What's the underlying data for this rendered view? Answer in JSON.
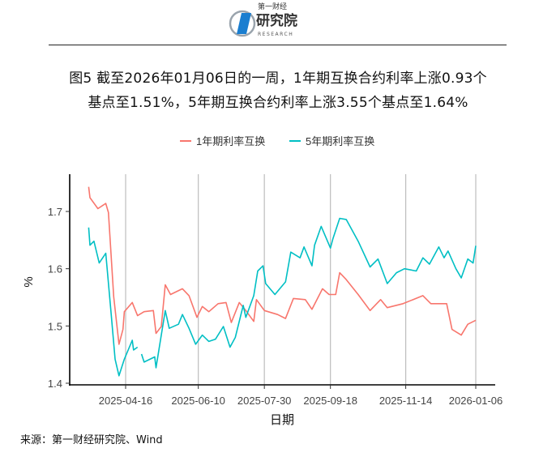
{
  "header": {
    "logo_text_top": "第一财经",
    "logo_text_main": "研究院",
    "logo_text_sub": "RESEARCH"
  },
  "title_line1": "图5  截至2026年01月06日的一周，1年期互换合约利率上涨0.93个",
  "title_line2": "基点至1.51%，5年期互换合约利率上涨3.55个基点至1.64%",
  "source": "来源：第一财经研究院、Wind",
  "chart_data": {
    "type": "line",
    "xlabel": "日期",
    "ylabel": "%",
    "ylim": [
      1.4,
      1.75
    ],
    "yticks": [
      "1.4",
      "1.5",
      "1.6",
      "1.7"
    ],
    "xticks": [
      "2025-04-16",
      "2025-06-10",
      "2025-07-30",
      "2025-09-18",
      "2025-11-14",
      "2026-01-06"
    ],
    "grid": "vertical lines at x ticks",
    "legend": "top",
    "series": [
      {
        "name": "1年期利率互换",
        "color": "#F8766D",
        "points": [
          [
            "2025-03-19",
            1.743
          ],
          [
            "2025-03-20",
            1.724
          ],
          [
            "2025-03-26",
            1.705
          ],
          [
            "2025-04-01",
            1.714
          ],
          [
            "2025-04-03",
            1.698
          ],
          [
            "2025-04-07",
            1.551
          ],
          [
            "2025-04-11",
            1.468
          ],
          [
            "2025-04-14",
            1.494
          ],
          [
            "2025-04-15",
            1.525
          ],
          [
            "2025-04-21",
            1.541
          ],
          [
            "2025-04-25",
            1.518
          ],
          [
            "2025-04-30",
            1.525
          ],
          [
            "2025-05-07",
            1.527
          ],
          [
            "2025-05-09",
            1.487
          ],
          [
            "2025-05-13",
            1.499
          ],
          [
            "2025-05-16",
            1.572
          ],
          [
            "2025-05-20",
            1.555
          ],
          [
            "2025-05-29",
            1.565
          ],
          [
            "2025-06-03",
            1.553
          ],
          [
            "2025-06-09",
            1.515
          ],
          [
            "2025-06-13",
            1.534
          ],
          [
            "2025-06-18",
            1.525
          ],
          [
            "2025-06-25",
            1.539
          ],
          [
            "2025-07-01",
            1.541
          ],
          [
            "2025-07-05",
            1.506
          ],
          [
            "2025-07-11",
            1.541
          ],
          [
            "2025-07-16",
            1.527
          ],
          [
            "2025-07-22",
            1.508
          ],
          [
            "2025-07-24",
            1.546
          ],
          [
            "2025-07-30",
            1.527
          ],
          [
            "2025-08-09",
            1.52
          ],
          [
            "2025-08-15",
            1.513
          ],
          [
            "2025-08-21",
            1.548
          ],
          [
            "2025-08-30",
            1.546
          ],
          [
            "2025-09-04",
            1.529
          ],
          [
            "2025-09-12",
            1.565
          ],
          [
            "2025-09-17",
            1.555
          ],
          [
            "2025-09-22",
            1.555
          ],
          [
            "2025-09-25",
            1.593
          ],
          [
            "2025-09-30",
            1.581
          ],
          [
            "2025-10-09",
            1.555
          ],
          [
            "2025-10-18",
            1.527
          ],
          [
            "2025-10-26",
            1.546
          ],
          [
            "2025-10-31",
            1.532
          ],
          [
            "2025-11-12",
            1.539
          ],
          [
            "2025-11-27",
            1.553
          ],
          [
            "2025-12-03",
            1.539
          ],
          [
            "2025-12-15",
            1.539
          ],
          [
            "2025-12-19",
            1.494
          ],
          [
            "2025-12-26",
            1.484
          ],
          [
            "2025-12-31",
            1.503
          ],
          [
            "2026-01-06",
            1.51
          ]
        ]
      },
      {
        "name": "5年期利率互换",
        "color": "#00BFC4",
        "points": [
          [
            "2025-03-19",
            1.672
          ],
          [
            "2025-03-20",
            1.641
          ],
          [
            "2025-03-23",
            1.648
          ],
          [
            "2025-03-27",
            1.61
          ],
          [
            "2025-04-01",
            1.627
          ],
          [
            "2025-04-05",
            1.522
          ],
          [
            "2025-04-08",
            1.442
          ],
          [
            "2025-04-11",
            1.413
          ],
          [
            "2025-04-15",
            1.442
          ],
          [
            "2025-04-21",
            1.475
          ],
          [
            "2025-04-22",
            1.458
          ],
          [
            "2025-04-25",
            1.463
          ],
          [
            "2025-04-27",
            null
          ],
          [
            "2025-04-28",
            1.451
          ],
          [
            "2025-04-30",
            1.437
          ],
          [
            "2025-05-08",
            1.446
          ],
          [
            "2025-05-09",
            1.427
          ],
          [
            "2025-05-16",
            1.527
          ],
          [
            "2025-05-19",
            1.496
          ],
          [
            "2025-05-26",
            1.503
          ],
          [
            "2025-05-29",
            1.52
          ],
          [
            "2025-06-03",
            1.496
          ],
          [
            "2025-06-08",
            1.468
          ],
          [
            "2025-06-13",
            1.484
          ],
          [
            "2025-06-18",
            1.473
          ],
          [
            "2025-06-23",
            1.477
          ],
          [
            "2025-06-29",
            1.499
          ],
          [
            "2025-07-04",
            1.463
          ],
          [
            "2025-07-08",
            1.48
          ],
          [
            "2025-07-14",
            1.536
          ],
          [
            "2025-07-16",
            1.515
          ],
          [
            "2025-07-22",
            1.553
          ],
          [
            "2025-07-25",
            1.596
          ],
          [
            "2025-07-29",
            1.605
          ],
          [
            "2025-07-31",
            1.574
          ],
          [
            "2025-08-07",
            1.555
          ],
          [
            "2025-08-15",
            1.577
          ],
          [
            "2025-08-19",
            1.629
          ],
          [
            "2025-08-26",
            1.619
          ],
          [
            "2025-08-29",
            1.638
          ],
          [
            "2025-09-04",
            1.605
          ],
          [
            "2025-09-06",
            1.641
          ],
          [
            "2025-09-11",
            1.674
          ],
          [
            "2025-09-18",
            1.636
          ],
          [
            "2025-09-20",
            1.653
          ],
          [
            "2025-09-25",
            1.688
          ],
          [
            "2025-09-30",
            1.686
          ],
          [
            "2025-10-09",
            1.648
          ],
          [
            "2025-10-18",
            1.603
          ],
          [
            "2025-10-24",
            1.617
          ],
          [
            "2025-10-31",
            1.574
          ],
          [
            "2025-11-07",
            1.593
          ],
          [
            "2025-11-13",
            1.6
          ],
          [
            "2025-11-22",
            1.596
          ],
          [
            "2025-11-27",
            1.619
          ],
          [
            "2025-12-02",
            1.608
          ],
          [
            "2025-12-09",
            1.638
          ],
          [
            "2025-12-13",
            1.619
          ],
          [
            "2025-12-16",
            1.631
          ],
          [
            "2025-12-22",
            1.6
          ],
          [
            "2025-12-26",
            1.584
          ],
          [
            "2025-12-31",
            1.617
          ],
          [
            "2026-01-04",
            1.61
          ],
          [
            "2026-01-06",
            1.64
          ]
        ]
      }
    ]
  }
}
